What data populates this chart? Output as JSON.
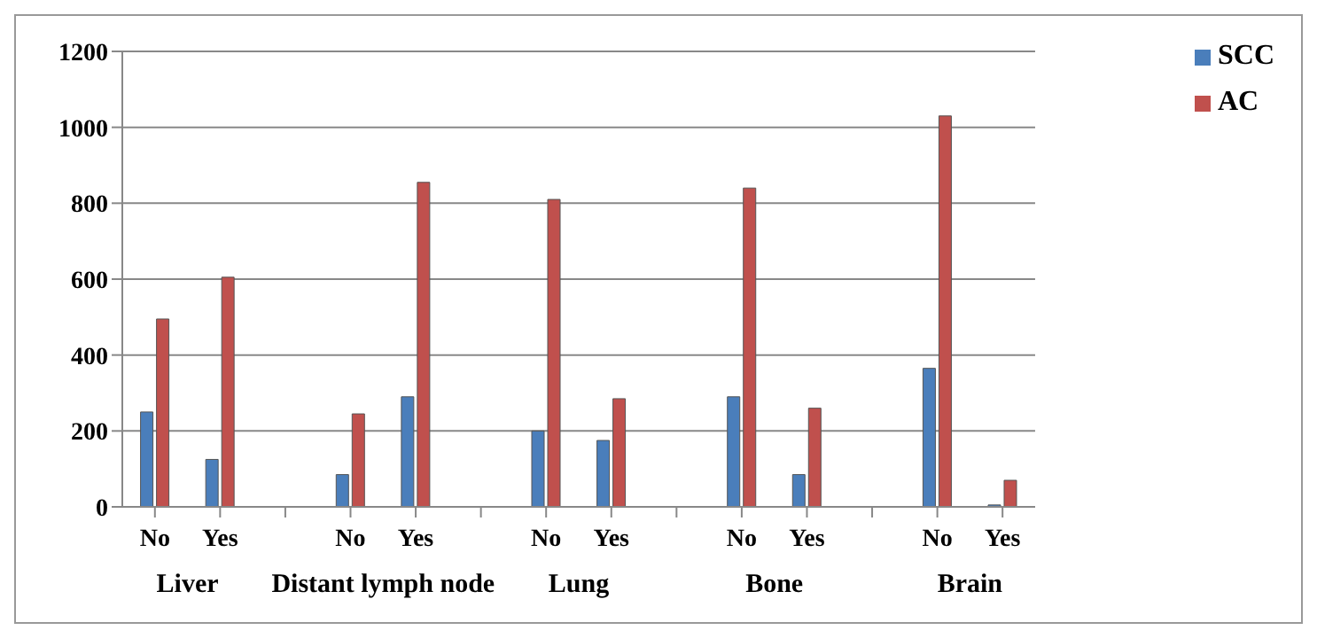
{
  "chart_data": {
    "type": "bar",
    "categories": [
      "No",
      "Yes",
      null,
      "No",
      "Yes",
      null,
      "No",
      "Yes",
      null,
      "No",
      "Yes",
      null,
      "No",
      "Yes"
    ],
    "series": [
      {
        "name": "SCC",
        "color": "#4a7ebb",
        "values": [
          250,
          125,
          null,
          85,
          290,
          null,
          200,
          175,
          null,
          290,
          85,
          null,
          365,
          5
        ]
      },
      {
        "name": "AC",
        "color": "#c0504d",
        "values": [
          495,
          605,
          null,
          245,
          855,
          null,
          810,
          285,
          null,
          840,
          260,
          null,
          1030,
          70
        ]
      }
    ],
    "annotations": [
      "Liver",
      "Distant lymph node",
      "Lung",
      "Bone",
      "Brain"
    ],
    "ylim": [
      0,
      1200
    ],
    "yticks": [
      0,
      200,
      400,
      600,
      800,
      1000,
      1200
    ],
    "grid": "y",
    "legend": "top right"
  }
}
